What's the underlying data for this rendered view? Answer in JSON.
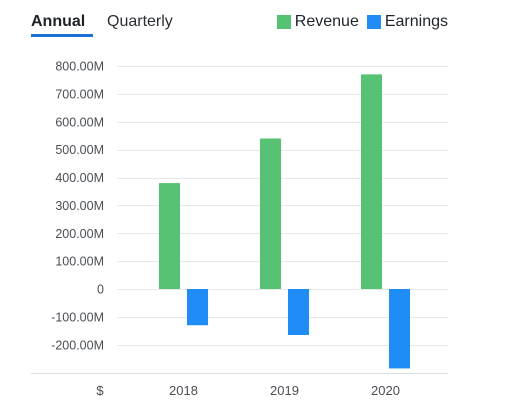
{
  "tabs": {
    "annual": "Annual",
    "quarterly": "Quarterly",
    "active": "annual",
    "accent_color": "#1c6fd6"
  },
  "legend": [
    {
      "name": "Revenue",
      "color": "#58c274"
    },
    {
      "name": "Earnings",
      "color": "#1f8df5"
    }
  ],
  "currency_label": "$",
  "chart_data": {
    "type": "bar",
    "categories": [
      "2018",
      "2019",
      "2020"
    ],
    "series": [
      {
        "name": "Revenue",
        "color": "#58c274",
        "values": [
          380000000,
          540000000,
          770000000
        ]
      },
      {
        "name": "Earnings",
        "color": "#1f8df5",
        "values": [
          -130000000,
          -165000000,
          -285000000
        ]
      }
    ],
    "y_ticks": [
      800000000,
      700000000,
      600000000,
      500000000,
      400000000,
      300000000,
      200000000,
      100000000,
      0,
      -100000000,
      -200000000
    ],
    "y_tick_labels": [
      "800.00M",
      "700.00M",
      "600.00M",
      "500.00M",
      "400.00M",
      "300.00M",
      "200.00M",
      "100.00M",
      "0",
      "-100.00M",
      "-200.00M"
    ],
    "ylim": [
      -300000000,
      800000000
    ],
    "grid": true,
    "legend_position": "top-right"
  }
}
